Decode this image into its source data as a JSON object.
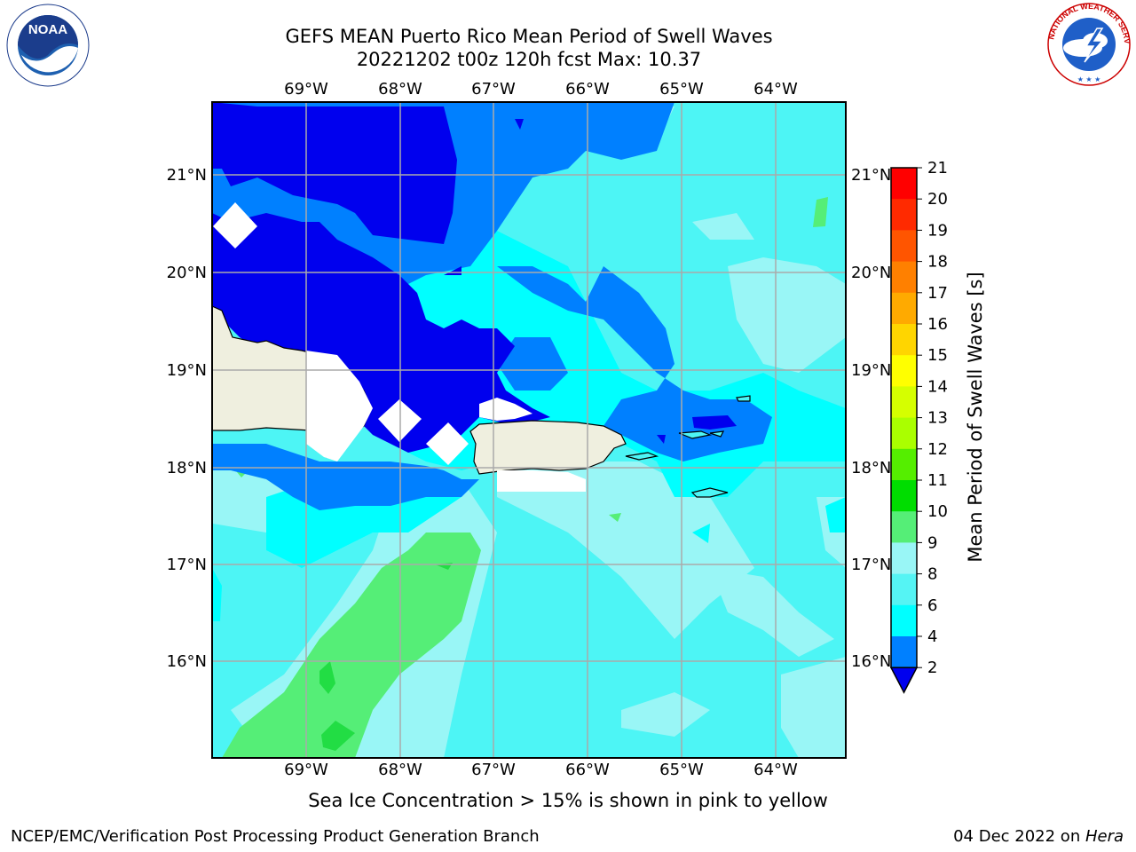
{
  "title_line1": "GEFS MEAN Puerto Rico Mean Period of Swell Waves",
  "title_line2": "20221202 t00z 120h fcst   Max: 10.37",
  "caption": "Sea Ice Concentration > 15% is shown in pink to yellow",
  "footer_left": "NCEP/EMC/Verification Post Processing Product Generation Branch",
  "footer_date": "04 Dec 2022 on ",
  "footer_host": "Hera",
  "logos": {
    "noara_text": "NOAA",
    "noaa_ring": "NATIONAL OCEANIC AND ATMOSPHERIC ADMINISTRATION · U.S. DEPARTMENT OF COMMERCE",
    "nws_ring": "NATIONAL WEATHER SERVICE"
  },
  "map": {
    "lon_labels": [
      "69°W",
      "68°W",
      "67°W",
      "66°W",
      "65°W",
      "64°W"
    ],
    "lat_labels": [
      "21°N",
      "20°N",
      "19°N",
      "18°N",
      "17°N",
      "16°N"
    ]
  },
  "colorbar": {
    "label": "Mean Period of Swell Waves [s]",
    "ticks": [
      "21",
      "20",
      "19",
      "18",
      "17",
      "16",
      "15",
      "14",
      "13",
      "12",
      "11",
      "10",
      "9",
      "8",
      "6",
      "4",
      "2"
    ],
    "colors": [
      "#ff0000",
      "#ff2a00",
      "#ff5500",
      "#ff8000",
      "#ffaa00",
      "#ffd500",
      "#ffff00",
      "#d5ff00",
      "#aaff00",
      "#55ee00",
      "#00dd00",
      "#55ee77",
      "#99f6f6",
      "#55f4f4",
      "#00ffff",
      "#0080ff",
      "#0000ee"
    ]
  }
}
